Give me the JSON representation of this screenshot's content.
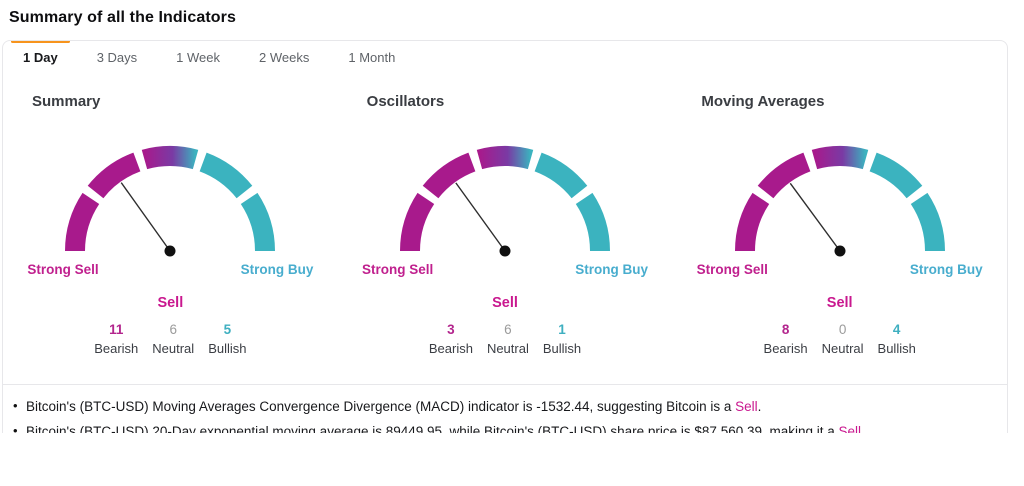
{
  "page": {
    "title": "Summary of all the Indicators"
  },
  "tabs": [
    {
      "label": "1 Day",
      "active": true
    },
    {
      "label": "3 Days",
      "active": false
    },
    {
      "label": "1 Week",
      "active": false
    },
    {
      "label": "2 Weeks",
      "active": false
    },
    {
      "label": "1 Month",
      "active": false
    }
  ],
  "gauges": [
    {
      "title": "Summary",
      "left_label": "Strong Sell",
      "right_label": "Strong Buy",
      "verdict": "Sell",
      "needle_angle_deg": 125.5,
      "counts": {
        "bearish": 11,
        "neutral": 6,
        "bullish": 5
      },
      "count_labels": {
        "bearish": "Bearish",
        "neutral": "Neutral",
        "bullish": "Bullish"
      }
    },
    {
      "title": "Oscillators",
      "left_label": "Strong Sell",
      "right_label": "Strong Buy",
      "verdict": "Sell",
      "needle_angle_deg": 125.8,
      "counts": {
        "bearish": 3,
        "neutral": 6,
        "bullish": 1
      },
      "count_labels": {
        "bearish": "Bearish",
        "neutral": "Neutral",
        "bullish": "Bullish"
      }
    },
    {
      "title": "Moving Averages",
      "left_label": "Strong Sell",
      "right_label": "Strong Buy",
      "verdict": "Sell",
      "needle_angle_deg": 126.3,
      "counts": {
        "bearish": 8,
        "neutral": 0,
        "bullish": 4
      },
      "count_labels": {
        "bearish": "Bearish",
        "neutral": "Neutral",
        "bullish": "Bullish"
      }
    }
  ],
  "insights": [
    {
      "pre": "Bitcoin's (BTC-USD) Moving Averages Convergence Divergence (MACD) indicator is -1532.44, suggesting Bitcoin is a ",
      "verdict": "Sell",
      "post": "."
    },
    {
      "pre": "Bitcoin's (BTC-USD) 20-Day exponential moving average is 89449.95, while Bitcoin's (BTC-USD) share price is $87,560.39, making it a ",
      "verdict": "Sell",
      "post": "."
    }
  ],
  "colors": {
    "tab_indicator": "#F7941D",
    "arc_sell": "#A81A8C",
    "arc_mid": "#7A3AA4",
    "arc_buy": "#3BB3BF",
    "text_sell": "#C0208E",
    "text_buy": "#48ADCE",
    "verdict": "#C9188F",
    "count_bearish": "#B3258D",
    "count_neutral": "#9B9B9B",
    "count_bullish": "#3EAFC0",
    "needle": "#2E2E2E"
  }
}
